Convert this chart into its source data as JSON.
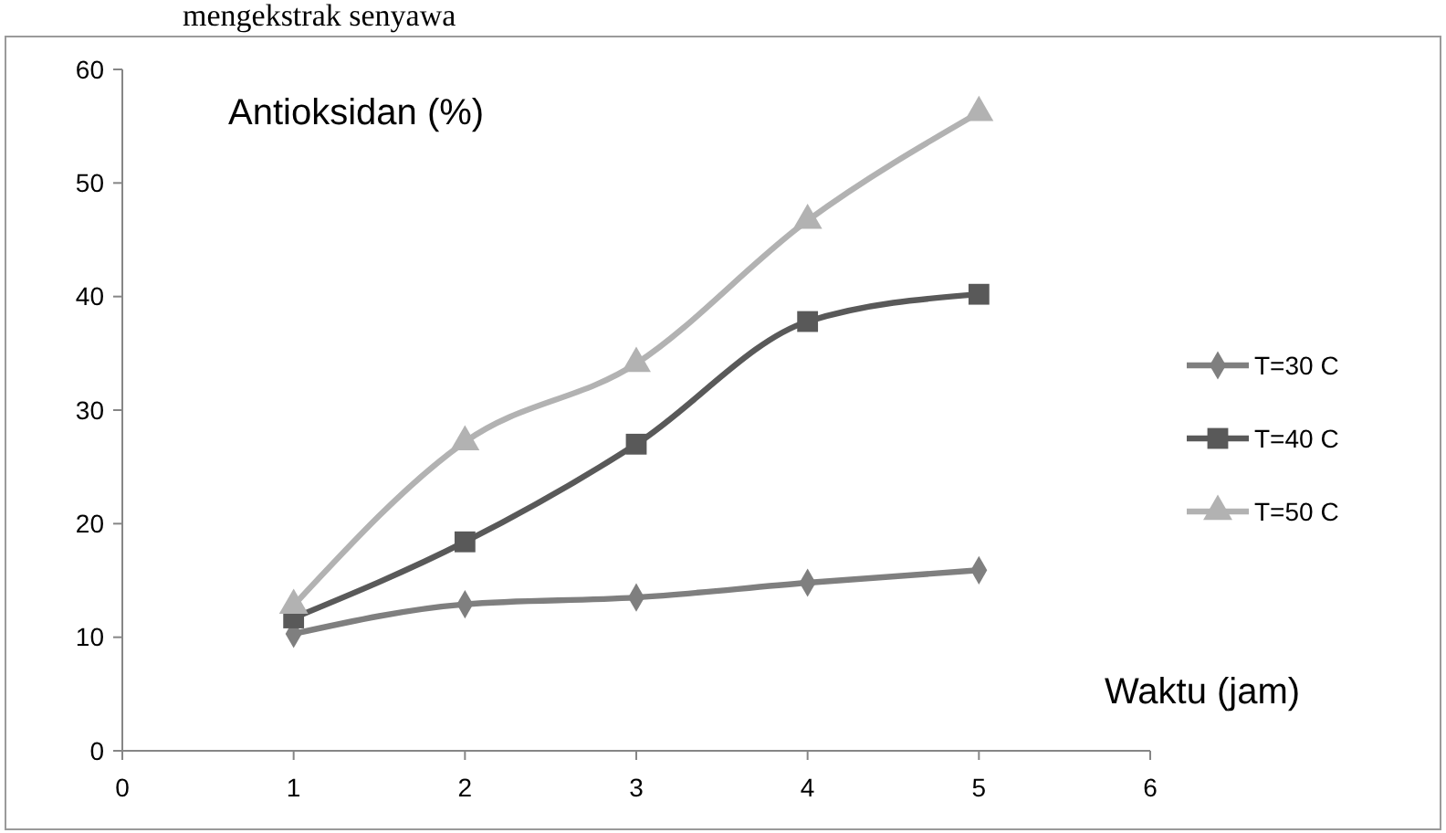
{
  "chart_data": {
    "type": "line",
    "ylabel": "Antioksidan (%)",
    "xlabel": "Waktu (jam)",
    "annotations": [
      "mengekstrak senyawa"
    ],
    "x": [
      1,
      2,
      3,
      4,
      5
    ],
    "series": [
      {
        "name": "T=30 C",
        "color": "#7f7f7f",
        "values": [
          10.3,
          12.9,
          13.5,
          14.8,
          15.9
        ],
        "marker": "diamond"
      },
      {
        "name": "T=40 C",
        "color": "#595959",
        "values": [
          11.7,
          18.4,
          27.0,
          37.8,
          40.2
        ],
        "marker": "square"
      },
      {
        "name": "T=50 C",
        "color": "#b2b2b2",
        "values": [
          12.8,
          27.2,
          34.1,
          46.7,
          56.2
        ],
        "marker": "triangle"
      }
    ],
    "xlim": [
      0,
      6
    ],
    "xticks": [
      0,
      1,
      2,
      3,
      4,
      5,
      6
    ],
    "ylim": [
      0,
      60
    ],
    "yticks": [
      0,
      10,
      20,
      30,
      40,
      50,
      60
    ],
    "grid": false,
    "legend": "right",
    "line_style": "solid"
  }
}
